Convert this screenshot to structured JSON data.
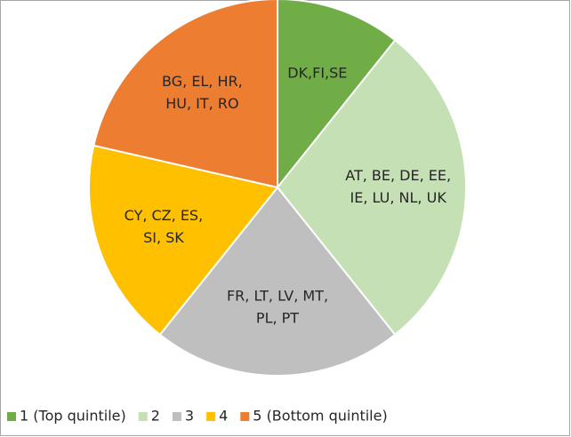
{
  "chart_data": {
    "type": "pie",
    "categories": [
      "1 (Top quintile)",
      "2",
      "3",
      "4",
      "5 (Bottom quintile)"
    ],
    "values": [
      3,
      8,
      6,
      5,
      6
    ],
    "colors": [
      "#70ad47",
      "#c5e0b4",
      "#bfbfbf",
      "#ffc000",
      "#ed7d31"
    ],
    "slice_labels": [
      [
        "DK,FI,SE"
      ],
      [
        "AT, BE, DE, EE,",
        "IE, LU, NL, UK"
      ],
      [
        "FR, LT, LV, MT,",
        "PL, PT"
      ],
      [
        "CY, CZ, ES,",
        "SI, SK"
      ],
      [
        "BG, EL, HR,",
        "HU, IT, RO"
      ]
    ],
    "legend": "bottom"
  }
}
